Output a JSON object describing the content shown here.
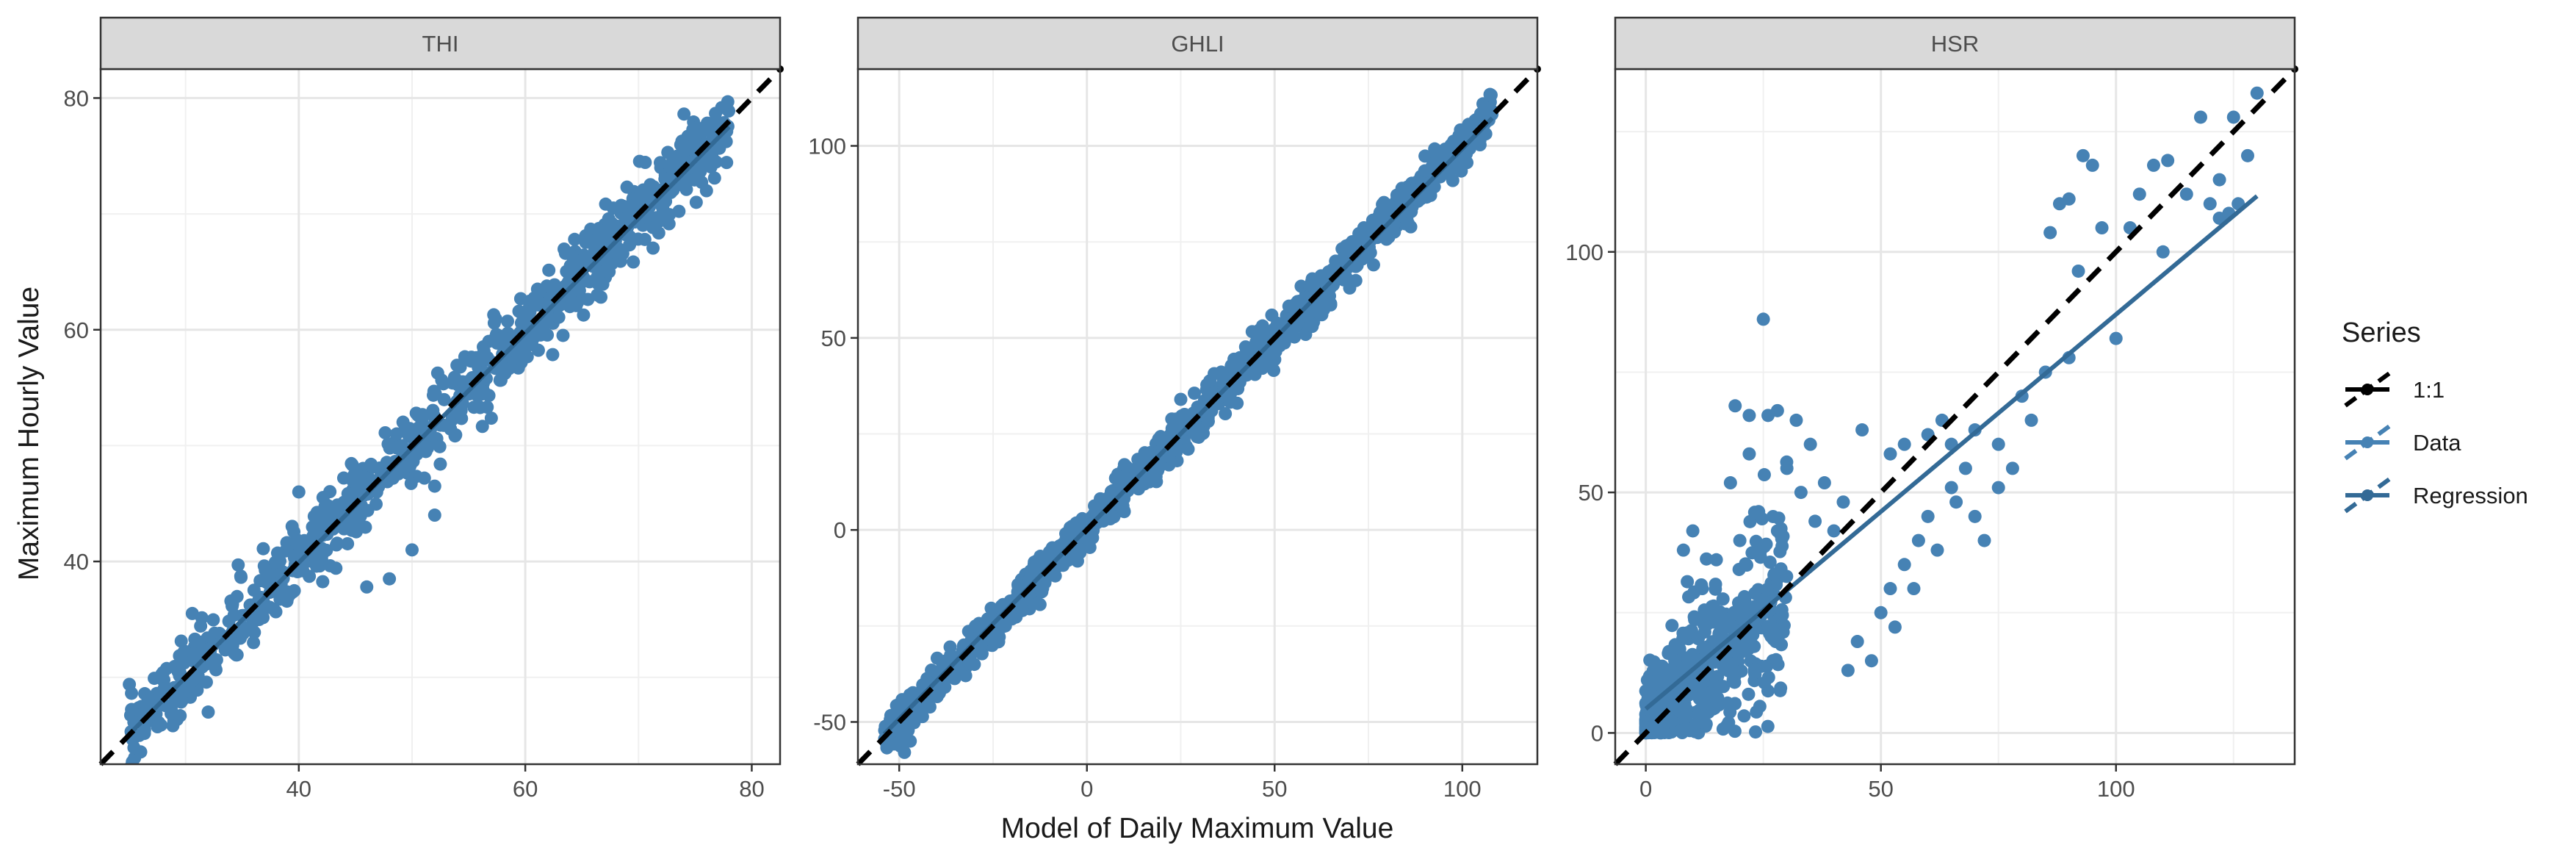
{
  "chart_data": {
    "type": "scatter",
    "layout": "facets",
    "xlabel": "Model of Daily Maximum Value",
    "ylabel": "Maximum Hourly Value",
    "legend": {
      "title": "Series",
      "placement": "right",
      "entries": [
        {
          "label": "1:1",
          "color": "#000000",
          "style": "dashed-line-with-point"
        },
        {
          "label": "Data",
          "color": "#4682b4",
          "style": "dashed-line-with-point"
        },
        {
          "label": "Regression",
          "color": "#336a96",
          "style": "dashed-line-with-point"
        }
      ]
    },
    "colors": {
      "data": "#4682b4",
      "regression": "#336a96",
      "one_to_one": "#000000",
      "strip_fill": "#d9d9d9"
    },
    "grid": true,
    "panels": [
      {
        "strip": "THI",
        "xlim": [
          22.5,
          82.5
        ],
        "ylim": [
          22.5,
          82.5
        ],
        "xticks": [
          40,
          60,
          80
        ],
        "yticks": [
          40,
          60,
          80
        ],
        "data_range": [
          25,
          78
        ],
        "noise": 1.6,
        "n_points": 900,
        "regression": {
          "slope": 0.99,
          "intercept": 0.3,
          "x_range": [
            25,
            78
          ]
        },
        "outliers": [
          [
            40,
            46
          ],
          [
            45,
            43
          ],
          [
            52,
            44
          ],
          [
            50,
            41
          ],
          [
            48,
            38.5
          ],
          [
            46,
            37.8
          ],
          [
            52,
            46.5
          ],
          [
            32,
            27
          ],
          [
            36,
            33
          ],
          [
            65,
            66
          ],
          [
            76,
            72
          ]
        ]
      },
      {
        "strip": "GHLI",
        "xlim": [
          -61,
          120
        ],
        "ylim": [
          -61,
          120
        ],
        "xticks": [
          -50,
          0,
          50,
          100
        ],
        "yticks": [
          -50,
          0,
          50,
          100
        ],
        "data_range": [
          -54,
          108
        ],
        "noise": 2.8,
        "n_points": 1100,
        "regression": {
          "slope": 0.99,
          "intercept": 0.3,
          "x_range": [
            -54,
            108
          ]
        },
        "outliers": [
          [
            10,
            17
          ],
          [
            25,
            34
          ],
          [
            40,
            33
          ],
          [
            60,
            53
          ],
          [
            83,
            84
          ],
          [
            95,
            98
          ],
          [
            -30,
            -35
          ],
          [
            70,
            63
          ]
        ]
      },
      {
        "strip": "HSR",
        "xlim": [
          -6.5,
          138
        ],
        "ylim": [
          -6.5,
          138
        ],
        "xticks": [
          0,
          50,
          100
        ],
        "yticks": [
          0,
          50,
          100
        ],
        "data_range": [
          0,
          30
        ],
        "noise": 5,
        "n_points": 700,
        "regression": {
          "slope": 0.82,
          "intercept": 5,
          "x_range": [
            0,
            130
          ]
        },
        "outliers": [
          [
            25,
            86
          ],
          [
            19,
            68
          ],
          [
            22,
            66
          ],
          [
            26,
            66
          ],
          [
            28,
            67
          ],
          [
            32,
            65
          ],
          [
            46,
            63
          ],
          [
            52,
            58
          ],
          [
            60,
            62
          ],
          [
            65,
            60
          ],
          [
            70,
            63
          ],
          [
            75,
            60
          ],
          [
            80,
            70
          ],
          [
            85,
            75
          ],
          [
            90,
            78
          ],
          [
            93,
            120
          ],
          [
            95,
            118
          ],
          [
            100,
            82
          ],
          [
            97,
            105
          ],
          [
            103,
            105
          ],
          [
            105,
            112
          ],
          [
            110,
            100
          ],
          [
            115,
            112
          ],
          [
            118,
            128
          ],
          [
            120,
            110
          ],
          [
            122,
            115
          ],
          [
            125,
            128
          ],
          [
            128,
            120
          ],
          [
            130,
            133
          ],
          [
            122,
            107
          ],
          [
            124,
            108
          ],
          [
            126,
            110
          ],
          [
            86,
            104
          ],
          [
            88,
            110
          ],
          [
            90,
            111
          ],
          [
            92,
            96
          ],
          [
            108,
            118
          ],
          [
            111,
            119
          ],
          [
            75,
            51
          ],
          [
            78,
            55
          ],
          [
            82,
            65
          ],
          [
            55,
            35
          ],
          [
            58,
            40
          ],
          [
            60,
            45
          ],
          [
            65,
            51
          ],
          [
            45,
            19
          ],
          [
            50,
            25
          ],
          [
            52,
            30
          ],
          [
            66,
            48
          ],
          [
            70,
            45
          ],
          [
            40,
            42
          ],
          [
            42,
            48
          ],
          [
            38,
            52
          ],
          [
            36,
            44
          ],
          [
            35,
            60
          ],
          [
            30,
            55
          ],
          [
            33,
            50
          ],
          [
            28,
            42
          ],
          [
            24,
            46
          ],
          [
            20,
            40
          ],
          [
            15,
            36
          ],
          [
            18,
            52
          ],
          [
            22,
            58
          ],
          [
            12,
            30
          ],
          [
            10,
            42
          ],
          [
            8,
            38
          ],
          [
            43,
            13
          ],
          [
            48,
            15
          ],
          [
            53,
            22
          ],
          [
            57,
            30
          ],
          [
            62,
            38
          ],
          [
            68,
            55
          ],
          [
            72,
            40
          ],
          [
            55,
            60
          ],
          [
            63,
            65
          ]
        ]
      }
    ]
  }
}
